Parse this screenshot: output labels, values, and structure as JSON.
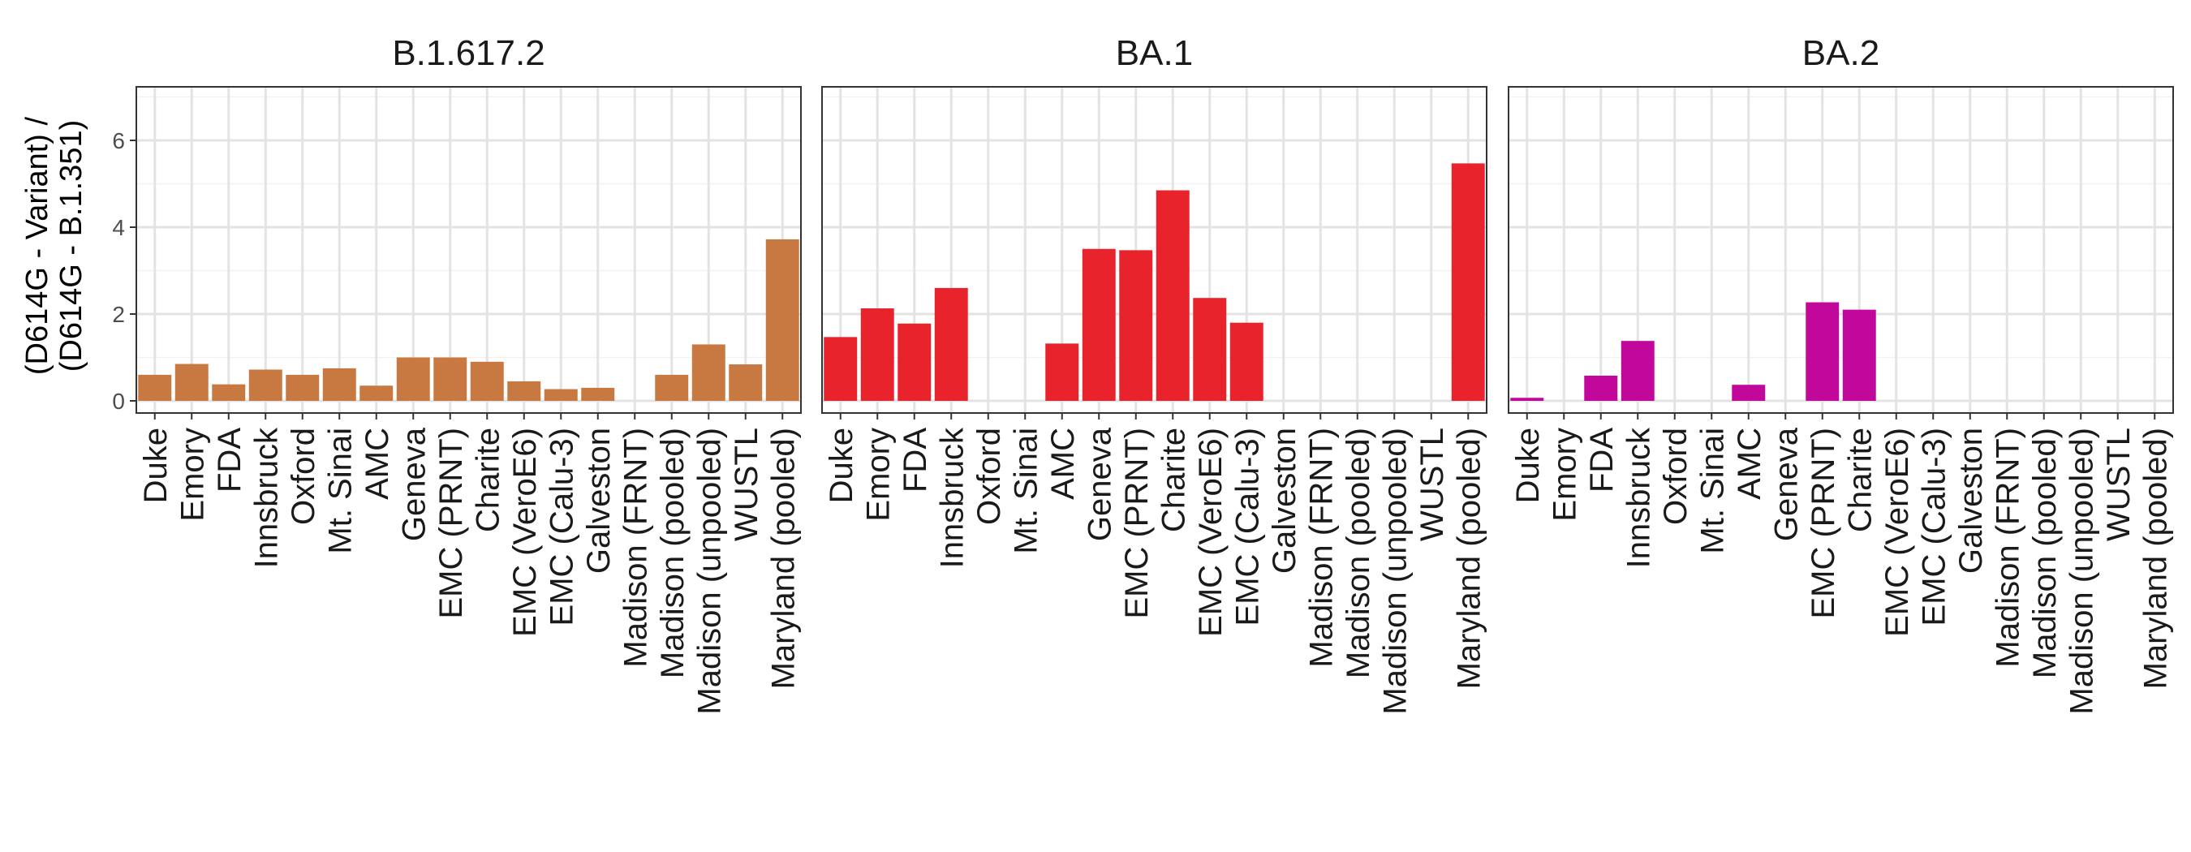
{
  "chart_data": {
    "type": "bar",
    "ylabel_lines": [
      "(D614G - Variant) /",
      "(D614G - B.1.351)"
    ],
    "ylim": [
      -0.35,
      7.3
    ],
    "yticks": [
      0,
      2,
      4,
      6
    ],
    "grid": true,
    "categories": [
      "Duke",
      "Emory",
      "FDA",
      "Innsbruck",
      "Oxford",
      "Mt. Sinai",
      "AMC",
      "Geneva",
      "EMC (PRNT)",
      "Charite",
      "EMC (VeroE6)",
      "EMC (Calu-3)",
      "Galveston",
      "Madison (FRNT)",
      "Madison (pooled)",
      "Madison (unpooled)",
      "WUSTL",
      "Maryland (pooled)"
    ],
    "panels": [
      {
        "title": "B.1.617.2",
        "color": "#C87941",
        "values": [
          0.6,
          0.85,
          0.38,
          0.72,
          0.6,
          0.75,
          0.35,
          1.0,
          1.0,
          0.9,
          0.45,
          0.27,
          0.3,
          null,
          0.6,
          1.3,
          0.84,
          3.72
        ]
      },
      {
        "title": "BA.1",
        "color": "#E8232B",
        "values": [
          1.47,
          2.13,
          1.78,
          2.6,
          null,
          null,
          1.32,
          3.5,
          3.47,
          4.85,
          2.37,
          1.8,
          null,
          null,
          null,
          null,
          null,
          5.47
        ]
      },
      {
        "title": "BA.2",
        "color": "#C2079B",
        "values": [
          0.07,
          null,
          0.58,
          1.38,
          null,
          null,
          0.37,
          null,
          2.27,
          2.1,
          null,
          null,
          null,
          null,
          null,
          null,
          null,
          null
        ]
      }
    ]
  }
}
